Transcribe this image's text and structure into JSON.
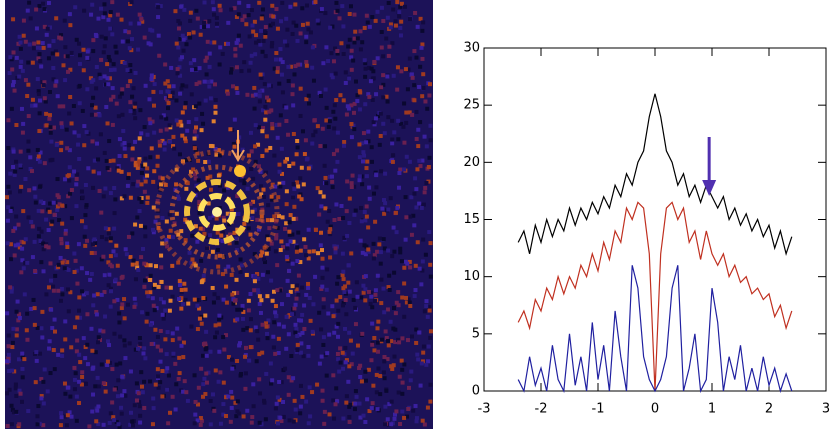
{
  "chart_data": {
    "type": "line",
    "x": [
      -2.4,
      -2.3,
      -2.2,
      -2.1,
      -2.0,
      -1.9,
      -1.8,
      -1.7,
      -1.6,
      -1.5,
      -1.4,
      -1.3,
      -1.2,
      -1.1,
      -1.0,
      -0.9,
      -0.8,
      -0.7,
      -0.6,
      -0.5,
      -0.4,
      -0.3,
      -0.2,
      -0.1,
      0,
      0.1,
      0.2,
      0.3,
      0.4,
      0.5,
      0.6,
      0.7,
      0.8,
      0.9,
      1.0,
      1.1,
      1.2,
      1.3,
      1.4,
      1.5,
      1.6,
      1.7,
      1.8,
      1.9,
      2.0,
      2.1,
      2.2,
      2.3,
      2.4
    ],
    "series": [
      {
        "color": "#000000",
        "values": [
          13,
          14,
          12,
          14.5,
          13,
          15,
          13.5,
          15,
          14,
          16,
          14.5,
          16,
          15,
          16.5,
          15.5,
          17,
          16,
          18,
          17,
          19,
          18,
          20,
          21,
          24,
          26,
          24,
          21,
          20,
          18,
          19,
          17,
          18,
          16.5,
          18,
          17,
          16,
          17,
          15,
          16,
          14.5,
          15.5,
          14,
          15,
          13.5,
          14.5,
          12.5,
          14,
          12,
          13.5
        ]
      },
      {
        "color": "#c03020",
        "values": [
          6,
          7,
          5.5,
          8,
          7,
          9,
          8,
          10,
          8.5,
          10,
          9,
          11,
          10,
          12,
          10.5,
          13,
          11.5,
          14,
          13,
          16,
          15,
          16.5,
          16,
          12,
          0,
          12,
          16,
          16.5,
          15,
          16,
          13,
          14,
          11.5,
          14,
          12,
          11,
          12,
          10,
          11,
          9.5,
          10,
          8.5,
          9,
          8,
          8.5,
          6.5,
          7.5,
          5.5,
          7
        ]
      },
      {
        "color": "#2020a0",
        "values": [
          1,
          0,
          3,
          0.5,
          2,
          0,
          4,
          1,
          0,
          5,
          0.5,
          3,
          0,
          6,
          1,
          4,
          0,
          7,
          3,
          0,
          11,
          9,
          3,
          1,
          0,
          1,
          3,
          9,
          11,
          0,
          2,
          5,
          0,
          1,
          9,
          6,
          0,
          3,
          1,
          4,
          0,
          2,
          0,
          3,
          0.5,
          2,
          0,
          1.5,
          0
        ]
      }
    ],
    "xlim": [
      -3,
      3
    ],
    "ylim": [
      0,
      30
    ],
    "xticks": [
      -3,
      -2,
      -1,
      0,
      1,
      2,
      3
    ],
    "yticks": [
      0,
      5,
      10,
      15,
      20,
      25,
      30
    ]
  }
}
